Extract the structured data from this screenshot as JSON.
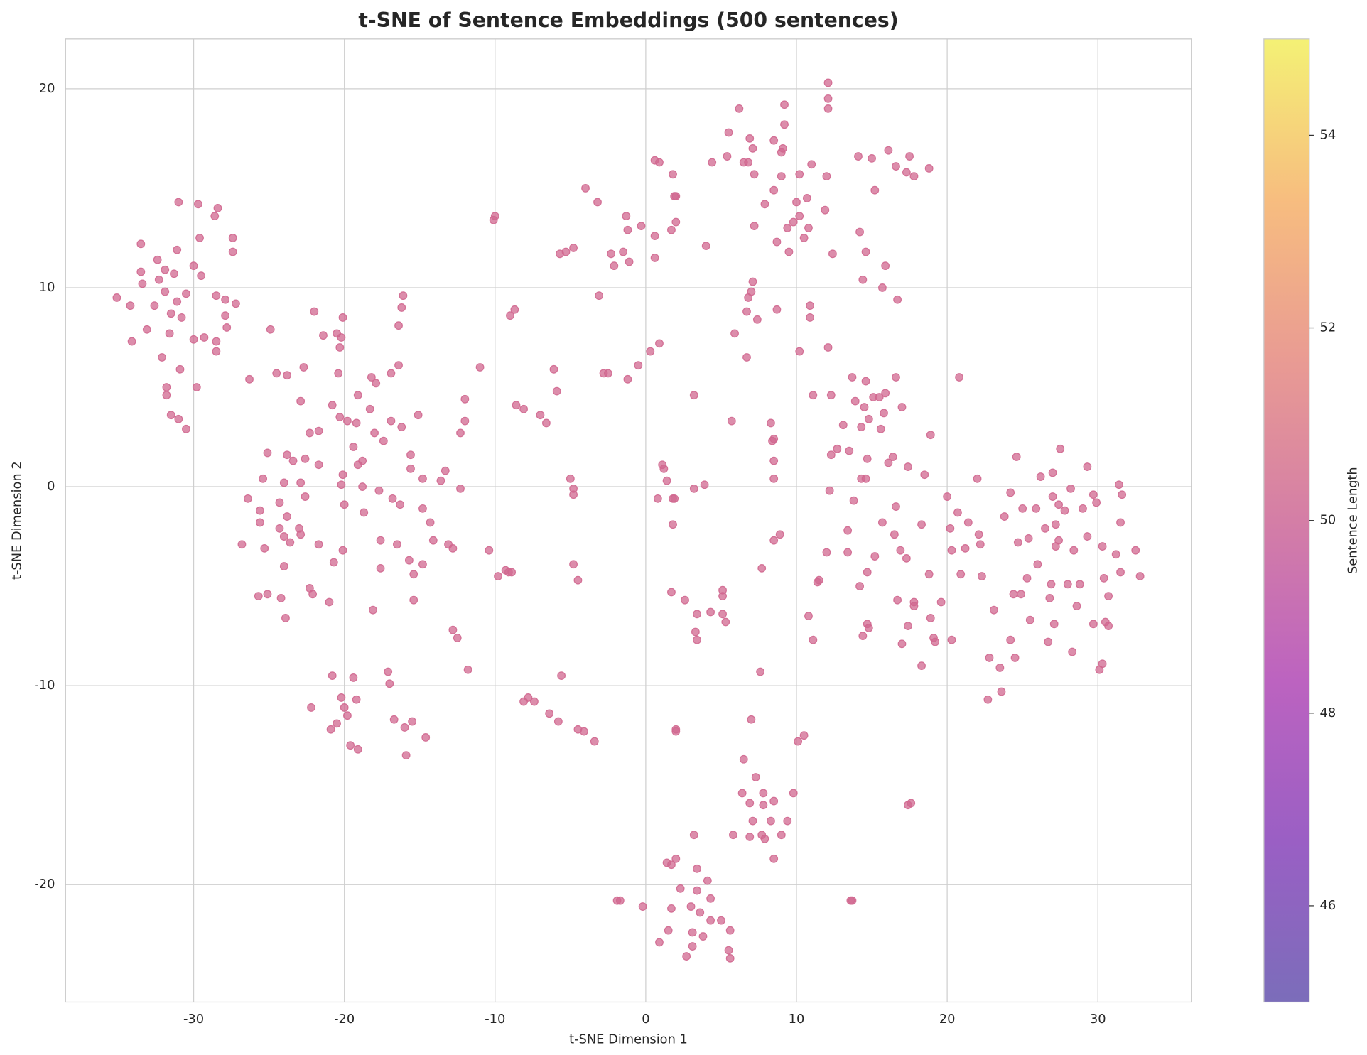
{
  "chart_data": {
    "type": "scatter",
    "title": "t-SNE of Sentence Embeddings (500 sentences)",
    "x_label": "t-SNE Dimension 1",
    "y_label": "t-SNE Dimension 2",
    "color": "#d0678f",
    "grid": true,
    "xlim": [
      -38.5,
      36.2
    ],
    "ylim": [
      -25.9,
      22.5
    ],
    "xticks": [
      -30,
      -20,
      -10,
      0,
      10,
      20,
      30
    ],
    "yticks": [
      -20,
      -10,
      0,
      10,
      20
    ],
    "colorbar": {
      "label": "Sentence Length",
      "lim": [
        45,
        55
      ],
      "ticks": [
        46,
        48,
        50,
        52,
        54
      ],
      "colormap": [
        "#7b6dba",
        "#9a5fc4",
        "#bc63c0",
        "#d47ea6",
        "#e99b93",
        "#f7bd7f",
        "#f4f175"
      ]
    },
    "x": [
      -35.1,
      -34.2,
      -34.1,
      -33.5,
      -33.5,
      -33.4,
      -33.1,
      -32.6,
      -32.4,
      -32.3,
      -32.1,
      -31.9,
      -31.9,
      -31.8,
      -31.8,
      -31.6,
      -31.5,
      -31.5,
      -31.3,
      -31.1,
      -31.1,
      -31.0,
      -31.0,
      -30.9,
      -30.8,
      -30.5,
      -30.5,
      -30.0,
      -30.0,
      -29.8,
      -29.7,
      -29.6,
      -29.5,
      -29.3,
      -28.6,
      -28.4,
      -28.5,
      -28.5,
      -28.5,
      -27.9,
      -27.9,
      -27.8,
      -27.4,
      -27.4,
      -27.2,
      -26.3,
      -26.8,
      -26.4,
      -25.6,
      -25.6,
      -25.4,
      -25.3,
      -25.7,
      -25.1,
      -25.1,
      -24.9,
      -24.5,
      -24.3,
      -24.3,
      -24.2,
      -24.0,
      -24.0,
      -24.0,
      -23.9,
      -23.8,
      -23.8,
      -23.8,
      -23.6,
      -23.4,
      -23.0,
      -22.9,
      -22.9,
      -22.9,
      -22.7,
      -22.6,
      -22.6,
      -22.3,
      -22.3,
      -22.2,
      -22.1,
      -22.0,
      -21.7,
      -21.7,
      -21.7,
      -21.4,
      -21.0,
      -20.8,
      -20.8,
      -20.9,
      -20.7,
      -20.5,
      -20.2,
      -20.0,
      -19.8,
      -19.6,
      -19.4,
      -19.2,
      -19.1,
      -20.5,
      -20.4,
      -20.3,
      -20.3,
      -20.2,
      -20.1,
      -20.2,
      -20.1,
      -20.0,
      -20.1,
      -19.8,
      -19.4,
      -19.2,
      -19.1,
      -19.1,
      -18.8,
      -18.8,
      -18.7,
      -18.3,
      -18.2,
      -18.1,
      -17.9,
      -18.0,
      -17.7,
      -17.6,
      -17.6,
      -17.4,
      -17.1,
      -17.0,
      -16.9,
      -16.9,
      -16.8,
      -16.7,
      -16.5,
      -16.4,
      -16.4,
      -16.3,
      -16.2,
      -16.2,
      -16.1,
      -16.0,
      -15.9,
      -15.7,
      -15.6,
      -15.6,
      -15.5,
      -15.4,
      -15.4,
      -15.1,
      -14.8,
      -14.8,
      -14.8,
      -14.6,
      -14.3,
      -14.1,
      -13.6,
      -13.3,
      -13.1,
      -12.8,
      -12.8,
      -12.5,
      -12.3,
      -12.3,
      -12.0,
      -12.0,
      -11.8,
      -11.0,
      -10.4,
      -10.1,
      -10.0,
      -9.8,
      -9.3,
      -9.1,
      -8.9,
      -9.0,
      -8.7,
      -8.6,
      -8.1,
      -8.1,
      -7.8,
      -7.4,
      -7.0,
      -6.6,
      -6.4,
      -6.1,
      -5.9,
      -5.8,
      -5.7,
      -5.6,
      -5.3,
      -5.0,
      -4.8,
      -4.8,
      -4.8,
      -4.8,
      -4.5,
      -4.5,
      -4.1,
      -4.0,
      -3.4,
      -3.2,
      -3.1,
      -2.8,
      -2.5,
      -2.3,
      -2.1,
      -1.9,
      -1.7,
      -1.5,
      -1.3,
      -1.2,
      -1.2,
      -1.1,
      -0.5,
      -0.3,
      -0.2,
      0.3,
      0.6,
      0.6,
      0.6,
      0.8,
      0.9,
      0.9,
      0.9,
      1.1,
      1.2,
      1.4,
      1.7,
      1.7,
      1.8,
      1.8,
      1.8,
      1.9,
      1.9,
      2.0,
      2.0,
      2.0,
      2.0,
      2.6,
      3.2,
      3.2,
      3.3,
      3.4,
      3.4,
      3.9,
      4.0,
      4.3,
      4.4,
      5.1,
      5.1,
      5.1,
      5.3,
      5.4,
      5.5,
      5.7,
      5.9,
      6.2,
      6.5,
      6.8,
      6.7,
      6.7,
      6.8,
      6.9,
      7.0,
      7.1,
      7.1,
      7.2,
      7.2,
      7.4,
      7.7,
      7.6,
      7.9,
      8.3,
      8.4,
      8.5,
      8.5,
      8.5,
      8.5,
      8.5,
      8.5,
      8.7,
      8.7,
      8.9,
      9.0,
      9.0,
      9.1,
      9.2,
      9.2,
      9.4,
      9.5,
      9.8,
      10.0,
      10.2,
      10.2,
      10.2,
      10.5,
      10.7,
      10.8,
      10.8,
      10.9,
      10.9,
      11.0,
      11.1,
      11.1,
      11.4,
      11.5,
      11.9,
      12.0,
      12.1,
      12.1,
      12.1,
      12.1,
      12.0,
      12.2,
      12.3,
      12.3,
      12.4,
      12.7,
      14.1,
      14.2,
      14.4,
      14.6,
      15.0,
      15.2,
      15.7,
      15.9,
      16.1,
      16.6,
      16.7,
      17.3,
      17.5,
      17.8,
      18.8,
      13.1,
      13.4,
      13.4,
      13.5,
      13.7,
      13.8,
      13.9,
      14.2,
      14.3,
      14.3,
      14.4,
      14.5,
      14.6,
      14.6,
      14.7,
      14.7,
      14.8,
      14.7,
      14.8,
      15.1,
      15.2,
      15.5,
      15.6,
      15.7,
      15.8,
      15.9,
      16.1,
      16.4,
      16.5,
      16.6,
      16.6,
      16.7,
      16.9,
      17.0,
      17.0,
      17.3,
      17.4,
      17.4,
      17.6,
      17.4,
      17.8,
      17.8,
      18.3,
      18.3,
      18.5,
      18.8,
      18.9,
      18.9,
      19.1,
      19.2,
      19.6,
      20.0,
      20.2,
      20.3,
      20.3,
      20.7,
      20.8,
      20.9,
      21.2,
      21.4,
      22.0,
      22.1,
      22.2,
      22.3,
      22.7,
      22.8,
      23.1,
      23.5,
      23.6,
      23.8,
      24.2,
      24.2,
      24.4,
      24.5,
      24.6,
      24.7,
      24.9,
      25.0,
      25.3,
      25.4,
      25.5,
      25.9,
      26.0,
      26.2,
      26.5,
      26.7,
      26.8,
      26.9,
      27.0,
      27.0,
      27.1,
      27.2,
      27.2,
      27.4,
      27.4,
      27.5,
      27.8,
      28.0,
      28.2,
      28.3,
      28.4,
      28.6,
      28.8,
      29.0,
      29.3,
      29.3,
      29.7,
      29.7,
      29.9,
      30.1,
      30.3,
      30.3,
      30.4,
      30.5,
      30.7,
      30.7,
      31.2,
      31.4,
      31.5,
      31.5,
      31.6,
      32.5,
      32.8,
      7.0,
      10.1,
      10.5,
      6.5,
      7.3,
      6.4,
      6.9,
      7.8,
      7.8,
      8.5,
      9.8,
      7.1,
      8.3,
      9.4,
      5.8,
      6.9,
      7.7,
      7.9,
      9.0,
      8.5,
      3.2,
      3.4,
      1.4,
      2.0,
      1.7,
      4.1,
      3.4,
      2.3,
      4.3,
      3.0,
      1.7,
      3.6,
      4.3,
      5.0,
      5.6,
      1.5,
      3.1,
      3.8,
      3.1,
      5.5,
      2.7,
      5.6,
      13.6,
      13.7
    ],
    "values": [
      9.5,
      9.1,
      7.3,
      12.2,
      10.8,
      10.2,
      7.9,
      9.1,
      11.4,
      10.4,
      6.5,
      10.9,
      9.8,
      5.0,
      4.6,
      7.7,
      8.7,
      3.6,
      10.7,
      11.9,
      9.3,
      14.3,
      3.4,
      5.9,
      8.5,
      2.9,
      9.7,
      11.1,
      7.4,
      5.0,
      14.2,
      12.5,
      10.6,
      7.5,
      13.6,
      14.0,
      9.6,
      7.3,
      6.8,
      9.4,
      8.6,
      8.0,
      12.5,
      11.8,
      9.2,
      5.4,
      -2.9,
      -0.6,
      -1.2,
      -1.8,
      0.4,
      -3.1,
      -5.5,
      -5.4,
      1.7,
      7.9,
      5.7,
      -0.8,
      -2.1,
      -5.6,
      0.2,
      -2.5,
      -4.0,
      -6.6,
      -1.5,
      5.6,
      1.6,
      -2.8,
      1.3,
      -2.1,
      4.3,
      0.2,
      -2.4,
      6.0,
      -0.5,
      1.4,
      -5.1,
      2.7,
      -11.1,
      -5.4,
      8.8,
      2.8,
      1.1,
      -2.9,
      7.6,
      -5.8,
      4.1,
      -9.5,
      -12.2,
      -3.8,
      -11.9,
      -10.6,
      -11.1,
      -11.5,
      -13.0,
      -9.6,
      -10.7,
      -13.2,
      7.7,
      5.7,
      7.0,
      3.5,
      7.5,
      8.5,
      0.1,
      0.6,
      -0.9,
      -3.2,
      3.3,
      2.0,
      3.2,
      1.1,
      4.6,
      1.3,
      0.0,
      -1.3,
      3.9,
      5.5,
      -6.2,
      5.2,
      2.7,
      -0.2,
      -4.1,
      -2.7,
      2.3,
      -9.3,
      -9.9,
      5.7,
      3.3,
      -0.6,
      -11.7,
      -2.9,
      8.1,
      6.1,
      -0.9,
      3.0,
      9.0,
      9.6,
      -12.1,
      -13.5,
      -3.7,
      1.6,
      0.9,
      -11.8,
      -5.7,
      -4.4,
      3.6,
      -1.1,
      -3.9,
      0.4,
      -12.6,
      -1.8,
      -2.7,
      0.3,
      0.8,
      -2.9,
      -3.1,
      -7.2,
      -7.6,
      -0.1,
      2.7,
      3.3,
      4.4,
      -9.2,
      6.0,
      -3.2,
      13.4,
      13.6,
      -4.5,
      -4.2,
      -4.3,
      -4.3,
      8.6,
      8.9,
      4.1,
      -10.8,
      3.9,
      -10.6,
      -10.8,
      3.6,
      3.2,
      -11.4,
      5.9,
      4.8,
      -11.8,
      11.7,
      -9.5,
      11.8,
      0.4,
      12.0,
      -3.9,
      -0.1,
      -0.4,
      -4.7,
      -12.2,
      -12.3,
      15.0,
      -12.8,
      14.3,
      9.6,
      5.7,
      5.7,
      11.7,
      11.1,
      -20.8,
      -20.8,
      11.8,
      13.6,
      12.9,
      5.4,
      11.3,
      6.1,
      13.1,
      -21.1,
      6.8,
      16.4,
      12.6,
      11.5,
      -0.6,
      7.2,
      16.3,
      -22.9,
      1.1,
      0.9,
      0.3,
      -5.3,
      12.9,
      -1.9,
      15.7,
      -0.6,
      -0.6,
      14.6,
      14.6,
      -12.2,
      13.3,
      -12.3,
      -5.7,
      4.6,
      -0.1,
      -7.3,
      -7.7,
      -6.4,
      0.1,
      12.1,
      -6.3,
      16.3,
      -6.4,
      -5.2,
      -5.5,
      -6.8,
      16.6,
      17.8,
      3.3,
      7.7,
      19.0,
      16.3,
      16.3,
      8.8,
      6.5,
      9.5,
      17.5,
      9.8,
      17.0,
      10.3,
      13.1,
      15.7,
      8.4,
      -4.1,
      -9.3,
      14.2,
      3.2,
      2.3,
      2.4,
      1.3,
      0.4,
      -2.7,
      17.4,
      14.9,
      8.9,
      12.3,
      -2.4,
      15.6,
      16.8,
      17.0,
      18.2,
      19.2,
      13.0,
      11.8,
      13.3,
      14.3,
      6.8,
      15.7,
      13.6,
      12.5,
      14.5,
      -6.5,
      13.0,
      8.5,
      9.1,
      16.2,
      4.6,
      -7.7,
      -4.8,
      -4.7,
      13.9,
      15.6,
      20.3,
      19.5,
      19.0,
      7.0,
      -3.3,
      -0.2,
      4.6,
      1.6,
      11.7,
      1.9,
      16.6,
      12.8,
      10.4,
      11.8,
      16.5,
      14.9,
      10.0,
      11.1,
      16.9,
      16.1,
      9.4,
      15.8,
      16.6,
      15.6,
      16.0,
      3.1,
      -3.3,
      -2.2,
      1.8,
      5.5,
      -0.7,
      4.3,
      -5.0,
      3.0,
      0.4,
      -7.5,
      4.0,
      5.3,
      0.4,
      1.4,
      -4.3,
      3.4,
      -6.9,
      -7.1,
      4.5,
      -3.5,
      4.5,
      2.9,
      -1.8,
      3.7,
      4.7,
      1.2,
      1.5,
      -2.4,
      5.5,
      -1.0,
      -5.7,
      -3.2,
      4.0,
      -7.9,
      -3.6,
      -7.0,
      -16.0,
      -15.9,
      1.0,
      -6.0,
      -5.8,
      -1.9,
      -9.0,
      0.6,
      -4.4,
      2.6,
      -6.6,
      -7.6,
      -7.8,
      -5.8,
      -0.5,
      -2.1,
      -3.2,
      -7.7,
      -1.3,
      5.5,
      -4.4,
      -3.1,
      -1.8,
      0.4,
      -2.4,
      -2.9,
      -4.5,
      -10.7,
      -8.6,
      -6.2,
      -9.1,
      -10.3,
      -1.5,
      -0.3,
      -7.7,
      -5.4,
      -8.6,
      1.5,
      -2.8,
      -5.4,
      -1.1,
      -4.6,
      -2.6,
      -6.7,
      -1.1,
      -3.9,
      0.5,
      -2.1,
      -7.8,
      -5.6,
      -4.9,
      0.7,
      -0.5,
      -6.9,
      -1.9,
      -3.0,
      -0.9,
      -2.7,
      1.9,
      -1.2,
      -4.9,
      -0.1,
      -8.3,
      -3.2,
      -6.0,
      -4.9,
      -1.1,
      1.0,
      -2.5,
      -6.9,
      -0.4,
      -0.8,
      -9.2,
      -8.9,
      -3.0,
      -4.6,
      -6.8,
      -5.5,
      -7.0,
      -3.4,
      0.1,
      -4.3,
      -1.8,
      -0.4,
      -3.2,
      -4.5,
      -11.7,
      -12.8,
      -12.5,
      -13.7,
      -14.6,
      -15.4,
      -15.9,
      -15.4,
      -16.0,
      -15.8,
      -15.4,
      -16.8,
      -16.8,
      -16.8,
      -17.5,
      -17.6,
      -17.5,
      -17.7,
      -17.5,
      -18.7,
      -17.5,
      -19.2,
      -18.9,
      -18.7,
      -19.0,
      -19.8,
      -20.3,
      -20.2,
      -20.7,
      -21.1,
      -21.2,
      -21.4,
      -21.8,
      -21.8,
      -22.3,
      -22.3,
      -22.4,
      -22.6,
      -23.1,
      -23.3,
      -23.6,
      -23.7,
      -20.8,
      -20.8
    ]
  }
}
